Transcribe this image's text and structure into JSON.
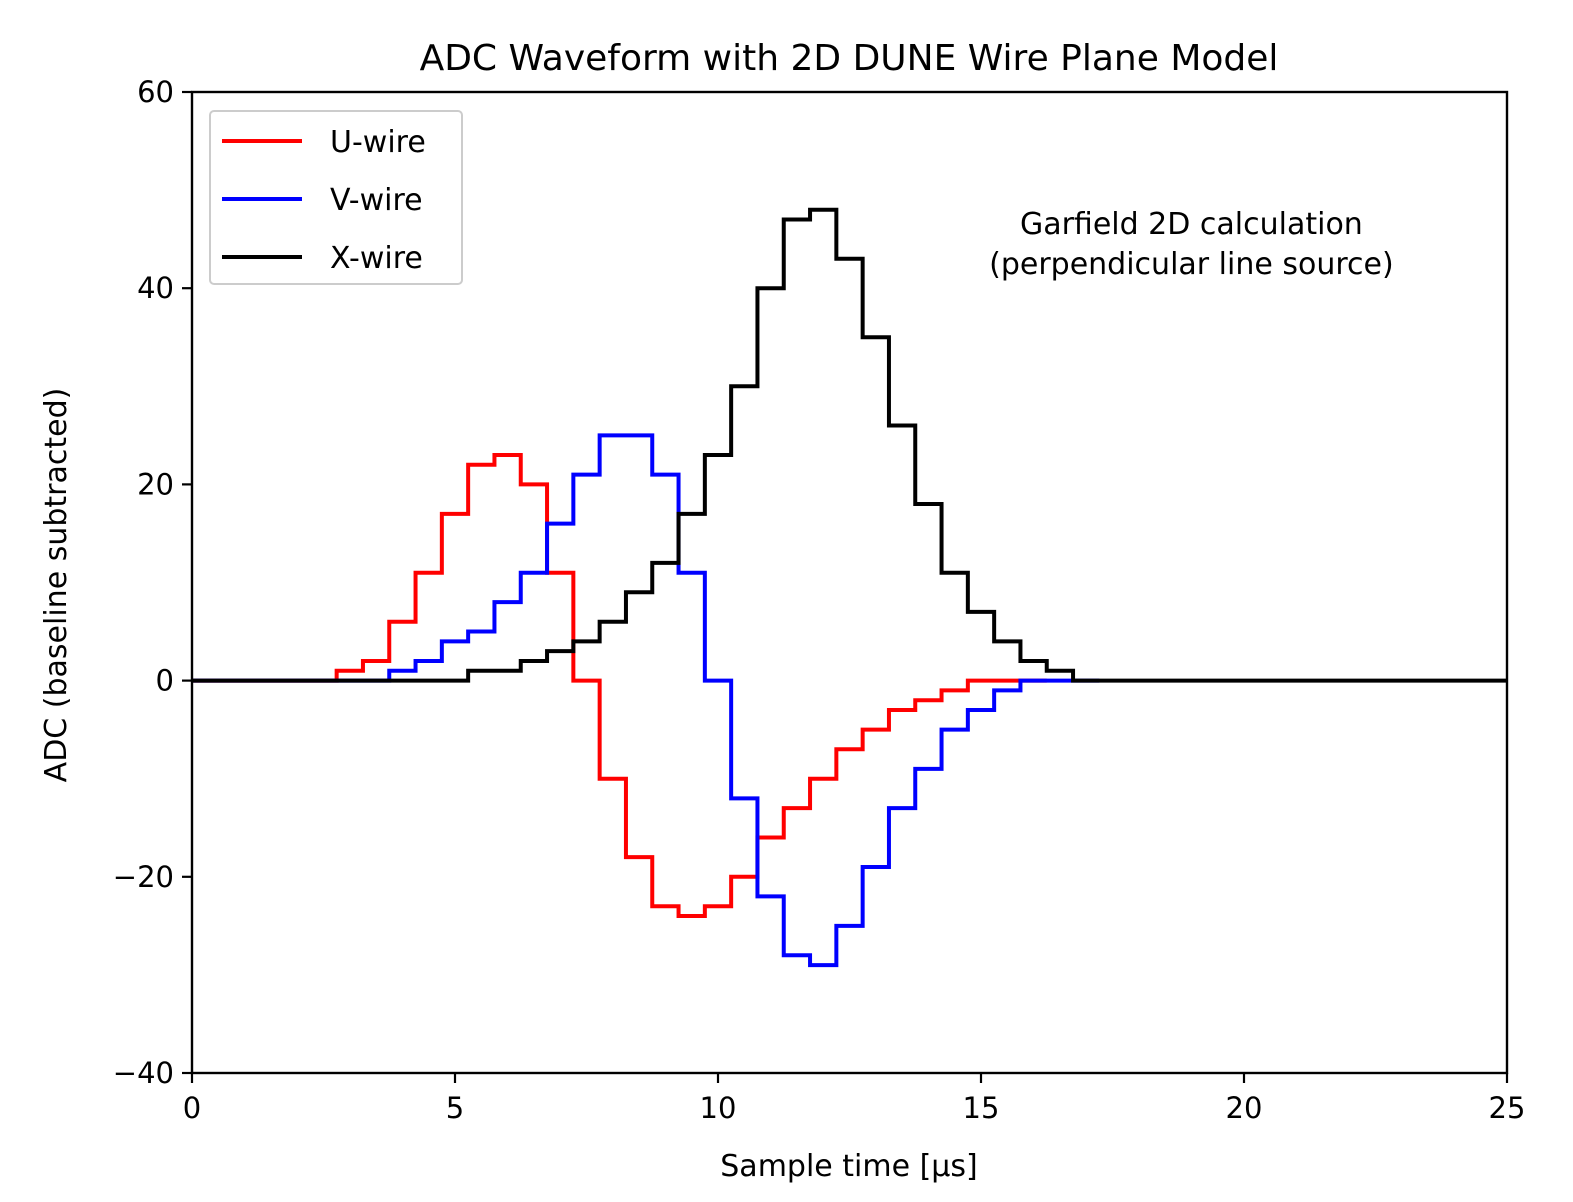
{
  "chart_data": {
    "type": "line",
    "step": "post",
    "title": "ADC Waveform with 2D DUNE Wire Plane Model",
    "xlabel": "Sample time [μs]",
    "ylabel": "ADC (baseline subtracted)",
    "xlim": [
      0,
      25
    ],
    "ylim": [
      -40,
      60
    ],
    "xticks": [
      0,
      5,
      10,
      15,
      20,
      25
    ],
    "xtick_labels": [
      "0",
      "5",
      "10",
      "15",
      "20",
      "25"
    ],
    "yticks": [
      -40,
      -20,
      0,
      20,
      40,
      60
    ],
    "ytick_labels": [
      "−40",
      "−20",
      "0",
      "20",
      "40",
      "60"
    ],
    "grid": false,
    "legend_position": "top-left",
    "annotation": {
      "lines": [
        "Garfield 2D calculation",
        "(perpendicular line source)"
      ],
      "x": 19.0,
      "y": 45.5
    },
    "series": [
      {
        "name": "U-wire",
        "color": "#ff0000",
        "x": [
          0,
          2.75,
          3.25,
          3.75,
          4.25,
          4.75,
          5.25,
          5.75,
          6.25,
          6.75,
          7.25,
          7.75,
          8.25,
          8.75,
          9.25,
          9.75,
          10.25,
          10.75,
          11.25,
          11.75,
          12.25,
          12.75,
          13.25,
          13.75,
          14.25,
          14.75,
          15.25,
          15.75
        ],
        "values": [
          0,
          1,
          2,
          6,
          11,
          17,
          22,
          23,
          20,
          11,
          0,
          -10,
          -18,
          -23,
          -24,
          -23,
          -20,
          -16,
          -13,
          -10,
          -7,
          -5,
          -3,
          -2,
          -1,
          0,
          0,
          0
        ]
      },
      {
        "name": "V-wire",
        "color": "#0000ff",
        "x": [
          0,
          3.75,
          4.25,
          4.75,
          5.25,
          5.75,
          6.25,
          6.75,
          7.25,
          7.75,
          8.25,
          8.75,
          9.25,
          9.75,
          10.25,
          10.75,
          11.25,
          11.75,
          12.25,
          12.75,
          13.25,
          13.75,
          14.25,
          14.75,
          15.25,
          15.75,
          16.25,
          16.75
        ],
        "values": [
          0,
          1,
          2,
          4,
          5,
          8,
          11,
          16,
          21,
          25,
          25,
          21,
          11,
          0,
          -12,
          -22,
          -28,
          -29,
          -25,
          -19,
          -13,
          -9,
          -5,
          -3,
          -1,
          0,
          0,
          0
        ]
      },
      {
        "name": "X-wire",
        "color": "#000000",
        "x": [
          0,
          5.25,
          5.75,
          6.25,
          6.75,
          7.25,
          7.75,
          8.25,
          8.75,
          9.25,
          9.75,
          10.25,
          10.75,
          11.25,
          11.75,
          12.25,
          12.75,
          13.25,
          13.75,
          14.25,
          14.75,
          15.25,
          15.75,
          16.25,
          16.75,
          25
        ],
        "values": [
          0,
          1,
          1,
          2,
          3,
          4,
          6,
          9,
          12,
          17,
          23,
          30,
          40,
          47,
          48,
          43,
          35,
          26,
          18,
          11,
          7,
          4,
          2,
          1,
          0,
          0
        ]
      }
    ]
  }
}
